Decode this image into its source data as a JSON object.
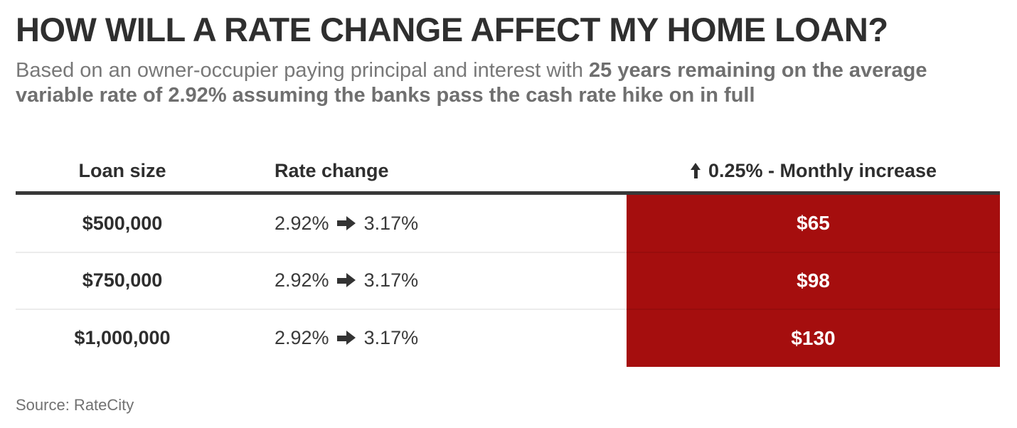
{
  "title": "HOW WILL A RATE CHANGE AFFECT MY HOME LOAN?",
  "subtitle": {
    "regular": "Based on an owner-occupier paying principal and interest with ",
    "bold": "25 years remaining on the average variable rate of 2.92% assuming the banks pass the cash rate hike on in full"
  },
  "table": {
    "columns": [
      {
        "label": "Loan size"
      },
      {
        "label": "Rate change"
      },
      {
        "label": "0.25% - Monthly increase",
        "icon": "up-arrow",
        "icon_glyph": "↑"
      }
    ],
    "rate_arrow_icon": {
      "name": "right-arrow",
      "glyph": "➡"
    },
    "rows": [
      {
        "loan_size": "$500,000",
        "rate_from": "2.92%",
        "rate_to": "3.17%",
        "monthly_increase": "$65"
      },
      {
        "loan_size": "$750,000",
        "rate_from": "2.92%",
        "rate_to": "3.17%",
        "monthly_increase": "$98"
      },
      {
        "loan_size": "$1,000,000",
        "rate_from": "2.92%",
        "rate_to": "3.17%",
        "monthly_increase": "$130"
      }
    ]
  },
  "source": "Source: RateCity",
  "colors": {
    "highlight_red": "#A50E0E",
    "header_rule": "#383838",
    "title_text": "#2F2F2F",
    "subtitle_text": "#787878",
    "increase_text": "#FFFFFF",
    "row_divider": "#ECECEC"
  },
  "chart_data": {
    "type": "table",
    "title": "HOW WILL A RATE CHANGE AFFECT MY HOME LOAN?",
    "subtitle": "Based on an owner-occupier paying principal and interest with 25 years remaining on the average variable rate of 2.92% assuming the banks pass the cash rate hike on in full",
    "columns": [
      "Loan size",
      "Rate change",
      "↑ 0.25% - Monthly increase"
    ],
    "rows": [
      [
        "$500,000",
        "2.92% ➡ 3.17%",
        "$65"
      ],
      [
        "$750,000",
        "2.92% ➡ 3.17%",
        "$98"
      ],
      [
        "$1,000,000",
        "2.92% ➡ 3.17%",
        "$130"
      ]
    ],
    "loan_sizes": [
      500000,
      750000,
      1000000
    ],
    "rate_change": {
      "from_percent": 2.92,
      "to_percent": 3.17,
      "hike_percent": 0.25
    },
    "monthly_increase_values": [
      65,
      98,
      130
    ],
    "source": "Source: RateCity",
    "highlight_column": "↑ 0.25% - Monthly increase",
    "highlight_color": "#A50E0E"
  }
}
